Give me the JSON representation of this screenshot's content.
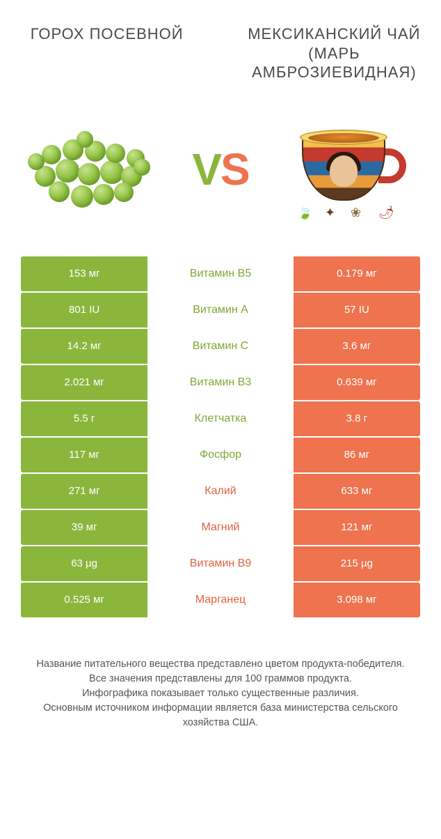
{
  "colors": {
    "green": "#8bb63c",
    "orange": "#ee734e",
    "green_text": "#7fa834",
    "orange_text": "#e2623e",
    "vs_v": "#8bb63c",
    "vs_s": "#ee734e"
  },
  "titles": {
    "left": "ГОРОХ ПОСЕВНОЙ",
    "right": "МЕКСИКАНСКИЙ ЧАЙ (МАРЬ АМБРОЗИЕВИДНАЯ)"
  },
  "vs": {
    "v": "V",
    "s": "S"
  },
  "rows": [
    {
      "left": "153 мг",
      "label": "Витамин B5",
      "right": "0.179 мг",
      "winner": "left"
    },
    {
      "left": "801 IU",
      "label": "Витамин A",
      "right": "57 IU",
      "winner": "left"
    },
    {
      "left": "14.2 мг",
      "label": "Витамин C",
      "right": "3.6 мг",
      "winner": "left"
    },
    {
      "left": "2.021 мг",
      "label": "Витамин B3",
      "right": "0.639 мг",
      "winner": "left"
    },
    {
      "left": "5.5 г",
      "label": "Клетчатка",
      "right": "3.8 г",
      "winner": "left"
    },
    {
      "left": "117 мг",
      "label": "Фосфор",
      "right": "86 мг",
      "winner": "left"
    },
    {
      "left": "271 мг",
      "label": "Калий",
      "right": "633 мг",
      "winner": "right"
    },
    {
      "left": "39 мг",
      "label": "Магний",
      "right": "121 мг",
      "winner": "right"
    },
    {
      "left": "63 µg",
      "label": "Витамин B9",
      "right": "215 µg",
      "winner": "right"
    },
    {
      "left": "0.525 мг",
      "label": "Марганец",
      "right": "3.098 мг",
      "winner": "right"
    }
  ],
  "footer": {
    "line1": "Название питательного вещества представлено цветом продукта-победителя.",
    "line2": "Все значения представлены для 100 граммов продукта.",
    "line3": "Инфографика показывает только существенные различия.",
    "line4": "Основным источником информации является база министерства сельского хозяйства США."
  }
}
